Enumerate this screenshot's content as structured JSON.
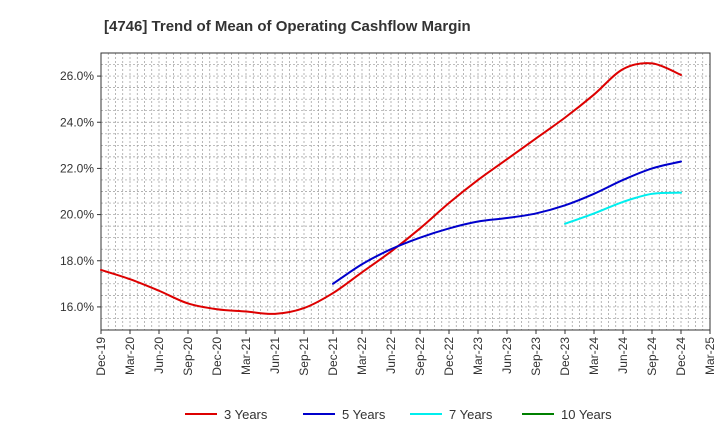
{
  "chart_data": {
    "type": "line",
    "title": "[4746]  Trend of Mean of Operating Cashflow Margin",
    "xlabel": "",
    "ylabel": "",
    "ylim": [
      15.0,
      27.0
    ],
    "yticks": [
      16.0,
      18.0,
      20.0,
      22.0,
      24.0,
      26.0
    ],
    "ytick_labels": [
      "16.0%",
      "18.0%",
      "20.0%",
      "22.0%",
      "24.0%",
      "26.0%"
    ],
    "categories": [
      "Dec-19",
      "Mar-20",
      "Jun-20",
      "Sep-20",
      "Dec-20",
      "Mar-21",
      "Jun-21",
      "Sep-21",
      "Dec-21",
      "Mar-22",
      "Jun-22",
      "Sep-22",
      "Dec-22",
      "Mar-23",
      "Jun-23",
      "Sep-23",
      "Dec-23",
      "Mar-24",
      "Jun-24",
      "Sep-24",
      "Dec-24",
      "Mar-25"
    ],
    "grid": true,
    "legend_position": "bottom",
    "series": [
      {
        "name": "3 Years",
        "color": "#dd0000",
        "values": [
          17.6,
          17.2,
          16.7,
          16.15,
          15.9,
          15.8,
          15.7,
          15.95,
          16.6,
          17.5,
          18.4,
          19.4,
          20.5,
          21.5,
          22.4,
          23.3,
          24.2,
          25.2,
          26.3,
          26.55,
          26.05,
          null
        ]
      },
      {
        "name": "5 Years",
        "color": "#0000cc",
        "values": [
          null,
          null,
          null,
          null,
          null,
          null,
          null,
          null,
          17.0,
          17.85,
          18.5,
          19.0,
          19.4,
          19.7,
          19.85,
          20.05,
          20.4,
          20.9,
          21.5,
          22.0,
          22.3,
          null
        ]
      },
      {
        "name": "7 Years",
        "color": "#00eeee",
        "values": [
          null,
          null,
          null,
          null,
          null,
          null,
          null,
          null,
          null,
          null,
          null,
          null,
          null,
          null,
          null,
          null,
          19.6,
          20.05,
          20.55,
          20.9,
          20.95,
          null
        ]
      },
      {
        "name": "10 Years",
        "color": "#008000",
        "values": [
          null,
          null,
          null,
          null,
          null,
          null,
          null,
          null,
          null,
          null,
          null,
          null,
          null,
          null,
          null,
          null,
          null,
          null,
          null,
          null,
          null,
          null
        ]
      }
    ]
  }
}
